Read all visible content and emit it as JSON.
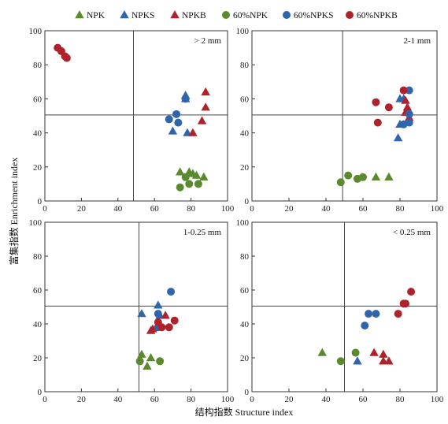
{
  "colors": {
    "NPK": "#5b8a2e",
    "NPKS": "#2f65ad",
    "NPKB": "#b0222a"
  },
  "legend": [
    {
      "name": "NPK",
      "color_key": "NPK",
      "marker": "triangle"
    },
    {
      "name": "NPKS",
      "color_key": "NPKS",
      "marker": "triangle"
    },
    {
      "name": "NPKB",
      "color_key": "NPKB",
      "marker": "triangle"
    },
    {
      "name": "60%NPK",
      "color_key": "NPK",
      "marker": "circle"
    },
    {
      "name": "60%NPKS",
      "color_key": "NPKS",
      "marker": "circle"
    },
    {
      "name": "60%NPKB",
      "color_key": "NPKB",
      "marker": "circle"
    }
  ],
  "xlabel": "结构指数 Structure index",
  "ylabel": "富集指数 Enrichment index",
  "chart_data": [
    {
      "type": "scatter",
      "panel_label": "> 2 mm",
      "xlim": [
        0,
        100
      ],
      "ylim": [
        0,
        100
      ],
      "xticks": [
        0,
        20,
        40,
        60,
        80,
        100
      ],
      "yticks": [
        0,
        20,
        40,
        60,
        80,
        100
      ],
      "ref_lines": {
        "x": 48.5,
        "y": 50.5
      },
      "series": [
        {
          "name": "NPK",
          "marker": "triangle",
          "color_key": "NPK",
          "x": [
            74,
            79,
            83,
            87,
            81
          ],
          "y": [
            17,
            17,
            15,
            14,
            16
          ]
        },
        {
          "name": "NPKS",
          "marker": "triangle",
          "color_key": "NPKS",
          "x": [
            77,
            77,
            70,
            78
          ],
          "y": [
            62,
            60,
            41,
            40
          ]
        },
        {
          "name": "NPKB",
          "marker": "triangle",
          "color_key": "NPKB",
          "x": [
            88,
            88,
            86,
            81
          ],
          "y": [
            64,
            55,
            47,
            40
          ]
        },
        {
          "name": "60%NPK",
          "marker": "circle",
          "color_key": "NPK",
          "x": [
            74,
            77,
            79,
            84
          ],
          "y": [
            8,
            14,
            10,
            10
          ]
        },
        {
          "name": "60%NPKS",
          "marker": "circle",
          "color_key": "NPKS",
          "x": [
            68,
            72,
            73,
            77
          ],
          "y": [
            48,
            51,
            46,
            60
          ]
        },
        {
          "name": "60%NPKB",
          "marker": "circle",
          "color_key": "NPKB",
          "x": [
            7,
            9,
            11,
            12
          ],
          "y": [
            90,
            88,
            85,
            84
          ]
        }
      ]
    },
    {
      "type": "scatter",
      "panel_label": "2-1 mm",
      "xlim": [
        0,
        100
      ],
      "ylim": [
        0,
        100
      ],
      "xticks": [
        0,
        20,
        40,
        60,
        80,
        100
      ],
      "yticks": [
        0,
        20,
        40,
        60,
        80,
        100
      ],
      "ref_lines": {
        "x": 49,
        "y": 50.5
      },
      "series": [
        {
          "name": "NPK",
          "marker": "triangle",
          "color_key": "NPK",
          "x": [
            67,
            74
          ],
          "y": [
            14,
            14
          ]
        },
        {
          "name": "NPKS",
          "marker": "triangle",
          "color_key": "NPKS",
          "x": [
            80,
            82,
            80,
            79
          ],
          "y": [
            60,
            60,
            45,
            37
          ]
        },
        {
          "name": "NPKB",
          "marker": "triangle",
          "color_key": "NPKB",
          "x": [
            83,
            84,
            83,
            85
          ],
          "y": [
            59,
            55,
            52,
            49
          ]
        },
        {
          "name": "60%NPK",
          "marker": "circle",
          "color_key": "NPK",
          "x": [
            48,
            52,
            57,
            60
          ],
          "y": [
            11,
            15,
            13,
            14
          ]
        },
        {
          "name": "60%NPKS",
          "marker": "circle",
          "color_key": "NPKS",
          "x": [
            85,
            85,
            82,
            85
          ],
          "y": [
            65,
            51,
            45,
            46
          ]
        },
        {
          "name": "60%NPKB",
          "marker": "circle",
          "color_key": "NPKB",
          "x": [
            67,
            68,
            74,
            82
          ],
          "y": [
            58,
            46,
            55,
            65
          ]
        }
      ]
    },
    {
      "type": "scatter",
      "panel_label": "1-0.25 mm",
      "xlim": [
        0,
        100
      ],
      "ylim": [
        0,
        100
      ],
      "xticks": [
        0,
        20,
        40,
        60,
        80,
        100
      ],
      "yticks": [
        0,
        20,
        40,
        60,
        80,
        100
      ],
      "ref_lines": {
        "x": 51.5,
        "y": 50.5
      },
      "series": [
        {
          "name": "NPK",
          "marker": "triangle",
          "color_key": "NPK",
          "x": [
            53,
            56,
            58
          ],
          "y": [
            22,
            15,
            20
          ]
        },
        {
          "name": "NPKS",
          "marker": "triangle",
          "color_key": "NPKS",
          "x": [
            53,
            62,
            63
          ],
          "y": [
            46,
            51,
            45
          ]
        },
        {
          "name": "NPKB",
          "marker": "triangle",
          "color_key": "NPKB",
          "x": [
            58,
            59,
            66,
            62
          ],
          "y": [
            36,
            37,
            45,
            40
          ]
        },
        {
          "name": "60%NPK",
          "marker": "circle",
          "color_key": "NPK",
          "x": [
            52,
            63
          ],
          "y": [
            18,
            18
          ]
        },
        {
          "name": "60%NPKS",
          "marker": "circle",
          "color_key": "NPKS",
          "x": [
            69,
            62,
            62
          ],
          "y": [
            59,
            46,
            38
          ]
        },
        {
          "name": "60%NPKB",
          "marker": "circle",
          "color_key": "NPKB",
          "x": [
            62,
            64,
            68,
            71
          ],
          "y": [
            41,
            38,
            38,
            42
          ]
        }
      ]
    },
    {
      "type": "scatter",
      "panel_label": "< 0.25 mm",
      "xlim": [
        0,
        100
      ],
      "ylim": [
        0,
        100
      ],
      "xticks": [
        0,
        20,
        40,
        60,
        80,
        100
      ],
      "yticks": [
        0,
        20,
        40,
        60,
        80,
        100
      ],
      "ref_lines": {
        "x": 50,
        "y": 50.5
      },
      "series": [
        {
          "name": "NPK",
          "marker": "triangle",
          "color_key": "NPK",
          "x": [
            38
          ],
          "y": [
            23
          ]
        },
        {
          "name": "NPKS",
          "marker": "triangle",
          "color_key": "NPKS",
          "x": [
            57
          ],
          "y": [
            18
          ]
        },
        {
          "name": "NPKB",
          "marker": "triangle",
          "color_key": "NPKB",
          "x": [
            66,
            71,
            74,
            71
          ],
          "y": [
            23,
            18,
            18,
            22
          ]
        },
        {
          "name": "60%NPK",
          "marker": "circle",
          "color_key": "NPK",
          "x": [
            48,
            56
          ],
          "y": [
            18,
            23
          ]
        },
        {
          "name": "60%NPKS",
          "marker": "circle",
          "color_key": "NPKS",
          "x": [
            61,
            63,
            67
          ],
          "y": [
            39,
            46,
            46
          ]
        },
        {
          "name": "60%NPKB",
          "marker": "circle",
          "color_key": "NPKB",
          "x": [
            79,
            82,
            83,
            86
          ],
          "y": [
            46,
            52,
            52,
            59
          ]
        }
      ]
    }
  ]
}
